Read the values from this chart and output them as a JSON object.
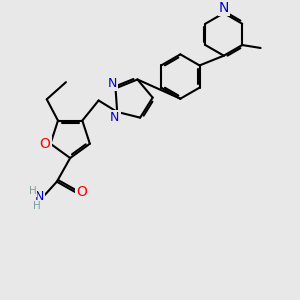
{
  "bg_color": "#e8e8e8",
  "bond_color": "#000000",
  "bond_width": 1.5,
  "atom_colors": {
    "N": "#0000cd",
    "O": "#ff0000",
    "H": "#7f9f9f",
    "C": "#000000"
  },
  "font_size": 9.0,
  "fig_size": [
    3.0,
    3.0
  ],
  "dpi": 100
}
